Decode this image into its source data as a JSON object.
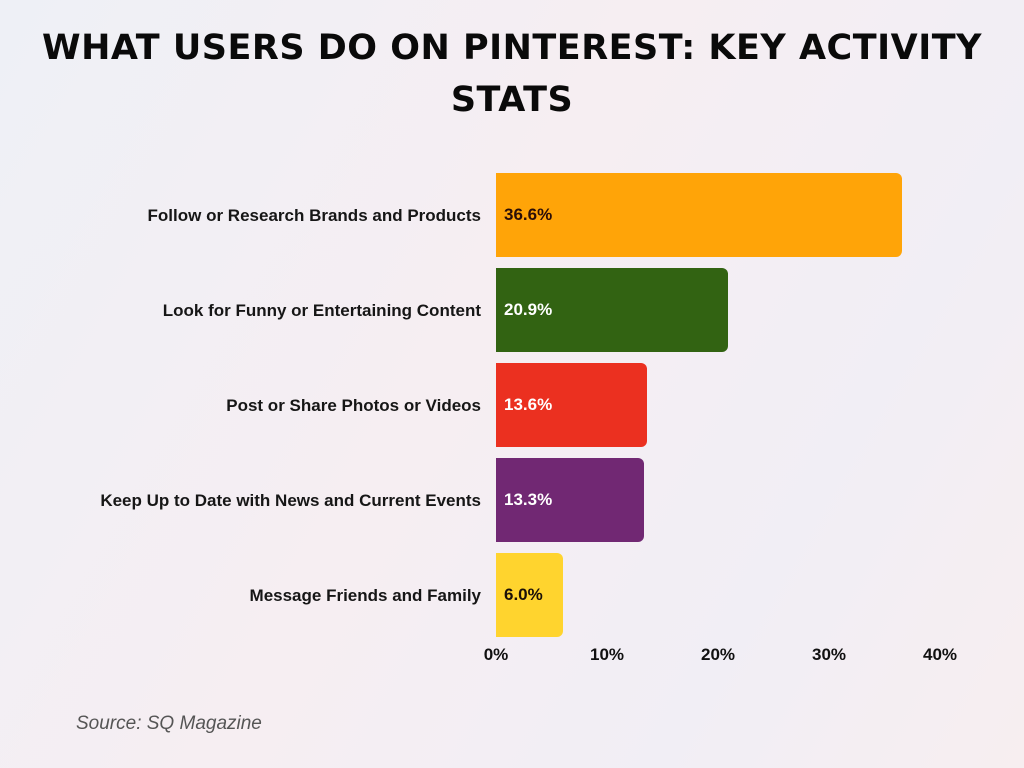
{
  "title": "WHAT USERS DO ON PINTEREST: KEY ACTIVITY STATS",
  "source": "Source: SQ Magazine",
  "chart_data": {
    "type": "bar",
    "orientation": "horizontal",
    "title": "WHAT USERS DO ON PINTEREST: KEY ACTIVITY STATS",
    "categories": [
      "Follow or Research Brands and Products",
      "Look for Funny or Entertaining Content",
      "Post or Share Photos or Videos",
      "Keep Up to Date with News and Current Events",
      "Message Friends and Family"
    ],
    "values": [
      36.6,
      20.9,
      13.6,
      13.3,
      6.0
    ],
    "value_labels": [
      "36.6%",
      "20.9%",
      "13.6%",
      "13.3%",
      "6.0%"
    ],
    "colors": [
      "#ffa408",
      "#326312",
      "#eb3020",
      "#712873",
      "#ffd42e"
    ],
    "label_colors": [
      "#2a0e08",
      "#ffffff",
      "#ffffff",
      "#ffffff",
      "#1a1008"
    ],
    "xlabel": "",
    "ylabel": "",
    "xlim": [
      0,
      40
    ],
    "x_ticks": [
      "0%",
      "10%",
      "20%",
      "30%",
      "40%"
    ],
    "grid": false,
    "legend": "none",
    "source": "Source: SQ Magazine"
  }
}
